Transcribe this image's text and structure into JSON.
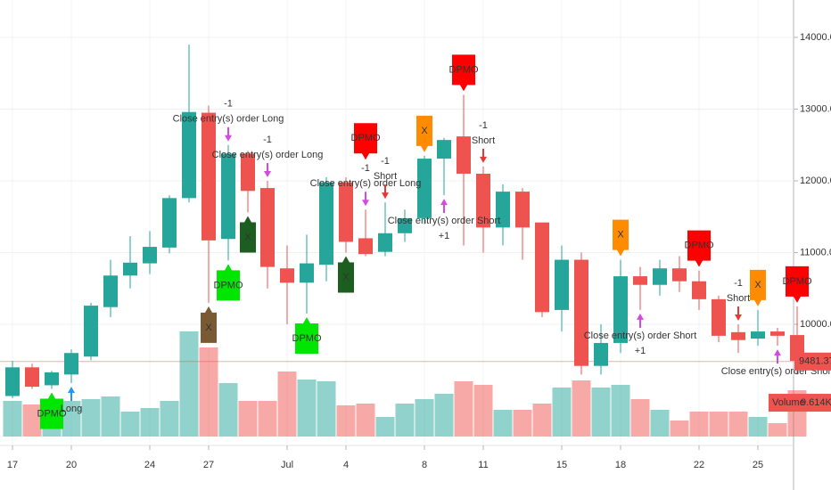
{
  "chart_data": {
    "type": "candlestick",
    "categories": [
      "17",
      null,
      null,
      "20",
      null,
      null,
      null,
      "24",
      null,
      null,
      "27",
      null,
      null,
      null,
      "Jul",
      null,
      null,
      "4",
      null,
      null,
      null,
      "8",
      null,
      null,
      "11",
      null,
      null,
      null,
      "15",
      null,
      null,
      "18",
      null,
      null,
      null,
      "22",
      null,
      null,
      "25",
      null,
      null
    ],
    "open": [
      9000,
      9400,
      9150,
      9300,
      9550,
      10240,
      10680,
      10850,
      11070,
      11760,
      12950,
      11190,
      12380,
      11900,
      10780,
      10580,
      10830,
      11980,
      11200,
      11010,
      11270,
      11480,
      12310,
      12620,
      12100,
      11350,
      11850,
      11420,
      10200,
      10900,
      9420,
      9740,
      10670,
      10550,
      10780,
      10600,
      10350,
      9890,
      9800,
      9900,
      9850
    ],
    "high": [
      9490,
      9450,
      9350,
      9650,
      10300,
      10900,
      11230,
      11300,
      11800,
      13900,
      13050,
      12500,
      12420,
      12000,
      11100,
      11250,
      12050,
      12050,
      11600,
      11700,
      11600,
      12350,
      12600,
      13200,
      12200,
      11950,
      11900,
      11420,
      11100,
      11000,
      10000,
      10900,
      10800,
      10900,
      10950,
      10750,
      10400,
      10000,
      10200,
      9950,
      10250
    ],
    "low": [
      8970,
      9100,
      9100,
      9180,
      9500,
      10100,
      10500,
      10700,
      10990,
      11700,
      10300,
      10890,
      11560,
      10500,
      10000,
      10150,
      10600,
      11000,
      10950,
      10950,
      11150,
      11400,
      11800,
      11100,
      11000,
      11100,
      10900,
      10100,
      9900,
      9300,
      9300,
      9600,
      10200,
      10400,
      10450,
      10200,
      9750,
      9600,
      9700,
      9700,
      9300
    ],
    "close": [
      9400,
      9130,
      9330,
      9600,
      10260,
      10680,
      10860,
      11080,
      11760,
      12960,
      11170,
      12380,
      11860,
      10800,
      10580,
      10850,
      11980,
      11150,
      10980,
      11270,
      11480,
      12310,
      12570,
      12100,
      11350,
      11850,
      11350,
      10170,
      10900,
      9420,
      9740,
      10670,
      10550,
      10780,
      10600,
      10350,
      9840,
      9780,
      9900,
      9840,
      9490
    ],
    "up_color": "#26a69a",
    "down_color": "#ef5350",
    "volume": {
      "name": "Volume",
      "values": [
        7400,
        6660,
        7030,
        7400,
        7770,
        8325,
        5180,
        5920,
        7400,
        21830,
        18500,
        11100,
        7400,
        7400,
        13505,
        11840,
        11470,
        6475,
        6845,
        4070,
        6845,
        7770,
        8880,
        11470,
        10730,
        5550,
        5550,
        6845,
        10175,
        11655,
        10175,
        10730,
        7770,
        5550,
        3330,
        5180,
        5180,
        5180,
        4070,
        2775,
        9614
      ],
      "last_label": "9.614K"
    },
    "last_price": 9481.37,
    "ylim": [
      8435,
      14522
    ],
    "yticks": [
      {
        "value": 10000,
        "label": "10000.00"
      },
      {
        "value": 11000,
        "label": "11000.00"
      },
      {
        "value": 12000,
        "label": "12000.00"
      },
      {
        "value": 13000,
        "label": "13000.00"
      },
      {
        "value": 14000,
        "label": "14000.00"
      }
    ],
    "grid": true,
    "annotations": [
      {
        "text": "DPMO",
        "index": 2,
        "side": "below",
        "kind": "flag",
        "color": "#00e600"
      },
      {
        "text": "Long",
        "index": 3,
        "side": "below",
        "kind": "arrow",
        "color": "#2196f3"
      },
      {
        "text": "Close entry(s) order Long",
        "index": 11,
        "side": "above",
        "kind": "arrow",
        "color": "#d34ae0"
      },
      {
        "text": "-1",
        "index": 11,
        "side": "above",
        "kind": "text",
        "color": "#d34ae0"
      },
      {
        "text": "X",
        "index": 10,
        "side": "below",
        "kind": "flag",
        "color": "#7a5a32"
      },
      {
        "text": "DPMO",
        "index": 11,
        "side": "below",
        "kind": "flag",
        "color": "#00e600"
      },
      {
        "text": "Close entry(s) order Long",
        "index": 13,
        "side": "above",
        "kind": "arrow",
        "color": "#d34ae0"
      },
      {
        "text": "-1",
        "index": 13,
        "side": "above",
        "kind": "text",
        "color": "#d34ae0"
      },
      {
        "text": "X",
        "index": 12,
        "side": "below",
        "kind": "flag",
        "color": "#1b5e20"
      },
      {
        "text": "DPMO",
        "index": 15,
        "side": "below",
        "kind": "flag",
        "color": "#00e600"
      },
      {
        "text": "X",
        "index": 17,
        "side": "below",
        "kind": "flag",
        "color": "#1b5e20"
      },
      {
        "text": "Close entry(s) order Long",
        "index": 18,
        "side": "above",
        "kind": "arrow",
        "color": "#d34ae0"
      },
      {
        "text": "-1",
        "index": 18,
        "side": "above",
        "kind": "text",
        "color": "#d34ae0"
      },
      {
        "text": "DPMO",
        "index": 18,
        "side": "above",
        "kind": "flag",
        "color": "#ff0000"
      },
      {
        "text": "Short",
        "index": 19,
        "side": "above",
        "kind": "arrow",
        "color": "#e53935"
      },
      {
        "text": "-1",
        "index": 19,
        "side": "above",
        "kind": "text",
        "color": "#e53935"
      },
      {
        "text": "X",
        "index": 21,
        "side": "above",
        "kind": "flag",
        "color": "#ff8c00"
      },
      {
        "text": "Close entry(s) order Short",
        "index": 22,
        "side": "below",
        "kind": "arrow",
        "color": "#d34ae0"
      },
      {
        "text": "+1",
        "index": 22,
        "side": "below",
        "kind": "text",
        "color": "#d34ae0"
      },
      {
        "text": "DPMO",
        "index": 23,
        "side": "above",
        "kind": "flag",
        "color": "#ff0000"
      },
      {
        "text": "Short",
        "index": 24,
        "side": "above",
        "kind": "arrow",
        "color": "#e53935"
      },
      {
        "text": "-1",
        "index": 24,
        "side": "above",
        "kind": "text",
        "color": "#e53935"
      },
      {
        "text": "X",
        "index": 31,
        "side": "above",
        "kind": "flag",
        "color": "#ff8c00"
      },
      {
        "text": "Close entry(s) order Short",
        "index": 32,
        "side": "below",
        "kind": "arrow",
        "color": "#d34ae0"
      },
      {
        "text": "+1",
        "index": 32,
        "side": "below",
        "kind": "text",
        "color": "#d34ae0"
      },
      {
        "text": "DPMO",
        "index": 35,
        "side": "above",
        "kind": "flag",
        "color": "#ff0000"
      },
      {
        "text": "Short",
        "index": 37,
        "side": "above",
        "kind": "arrow",
        "color": "#e53935"
      },
      {
        "text": "-1",
        "index": 37,
        "side": "above",
        "kind": "text",
        "color": "#e53935"
      },
      {
        "text": "X",
        "index": 38,
        "side": "above",
        "kind": "flag",
        "color": "#ff8c00"
      },
      {
        "text": "Close entry(s) order Short",
        "index": 39,
        "side": "below",
        "kind": "arrow",
        "color": "#d34ae0"
      },
      {
        "text": "DPMO",
        "index": 40,
        "side": "above",
        "kind": "flag",
        "color": "#ff0000"
      }
    ]
  }
}
